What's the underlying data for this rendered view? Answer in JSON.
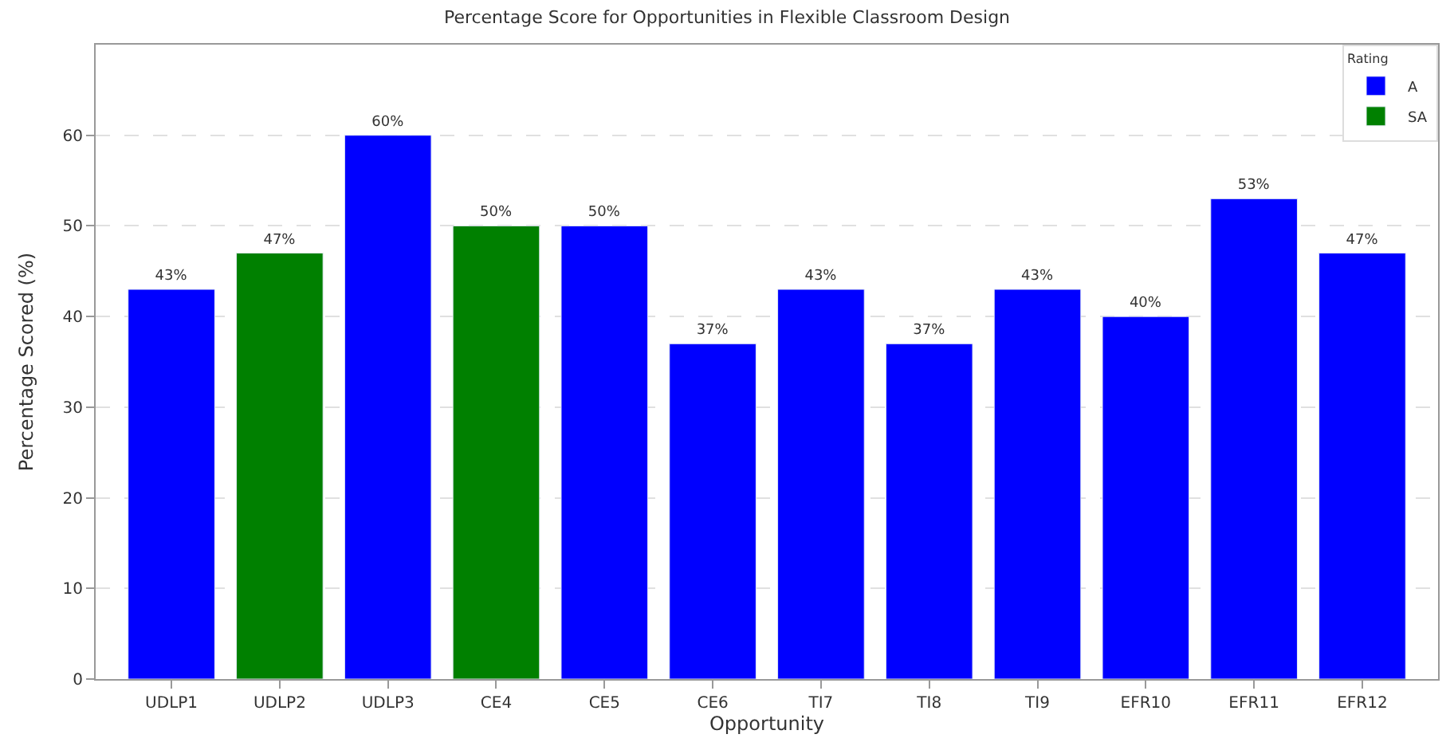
{
  "chart_data": {
    "type": "bar",
    "title": "Percentage Score for Opportunities in Flexible Classroom Design",
    "xlabel": "Opportunity",
    "ylabel": "Percentage Scored (%)",
    "legend_title": "Rating",
    "categories": [
      "UDLP1",
      "UDLP2",
      "UDLP3",
      "CE4",
      "CE5",
      "CE6",
      "TI7",
      "TI8",
      "TI9",
      "EFR10",
      "EFR11",
      "EFR12"
    ],
    "series": [
      {
        "name": "A",
        "color": "#0000ff",
        "values": [
          43,
          null,
          60,
          null,
          50,
          37,
          43,
          37,
          43,
          40,
          53,
          47
        ],
        "value_labels": [
          "43%",
          null,
          "60%",
          null,
          "50%",
          "37%",
          "43%",
          "37%",
          "43%",
          "40%",
          "53%",
          "47%"
        ]
      },
      {
        "name": "SA",
        "color": "#008000",
        "values": [
          null,
          47,
          null,
          50,
          null,
          null,
          null,
          null,
          null,
          null,
          null,
          null
        ],
        "value_labels": [
          null,
          "47%",
          null,
          "50%",
          null,
          null,
          null,
          null,
          null,
          null,
          null,
          null
        ]
      }
    ],
    "ylim": [
      0,
      70
    ],
    "yticks": [
      0,
      10,
      20,
      30,
      40,
      50,
      60
    ],
    "grid": "y",
    "legend": "top right"
  }
}
